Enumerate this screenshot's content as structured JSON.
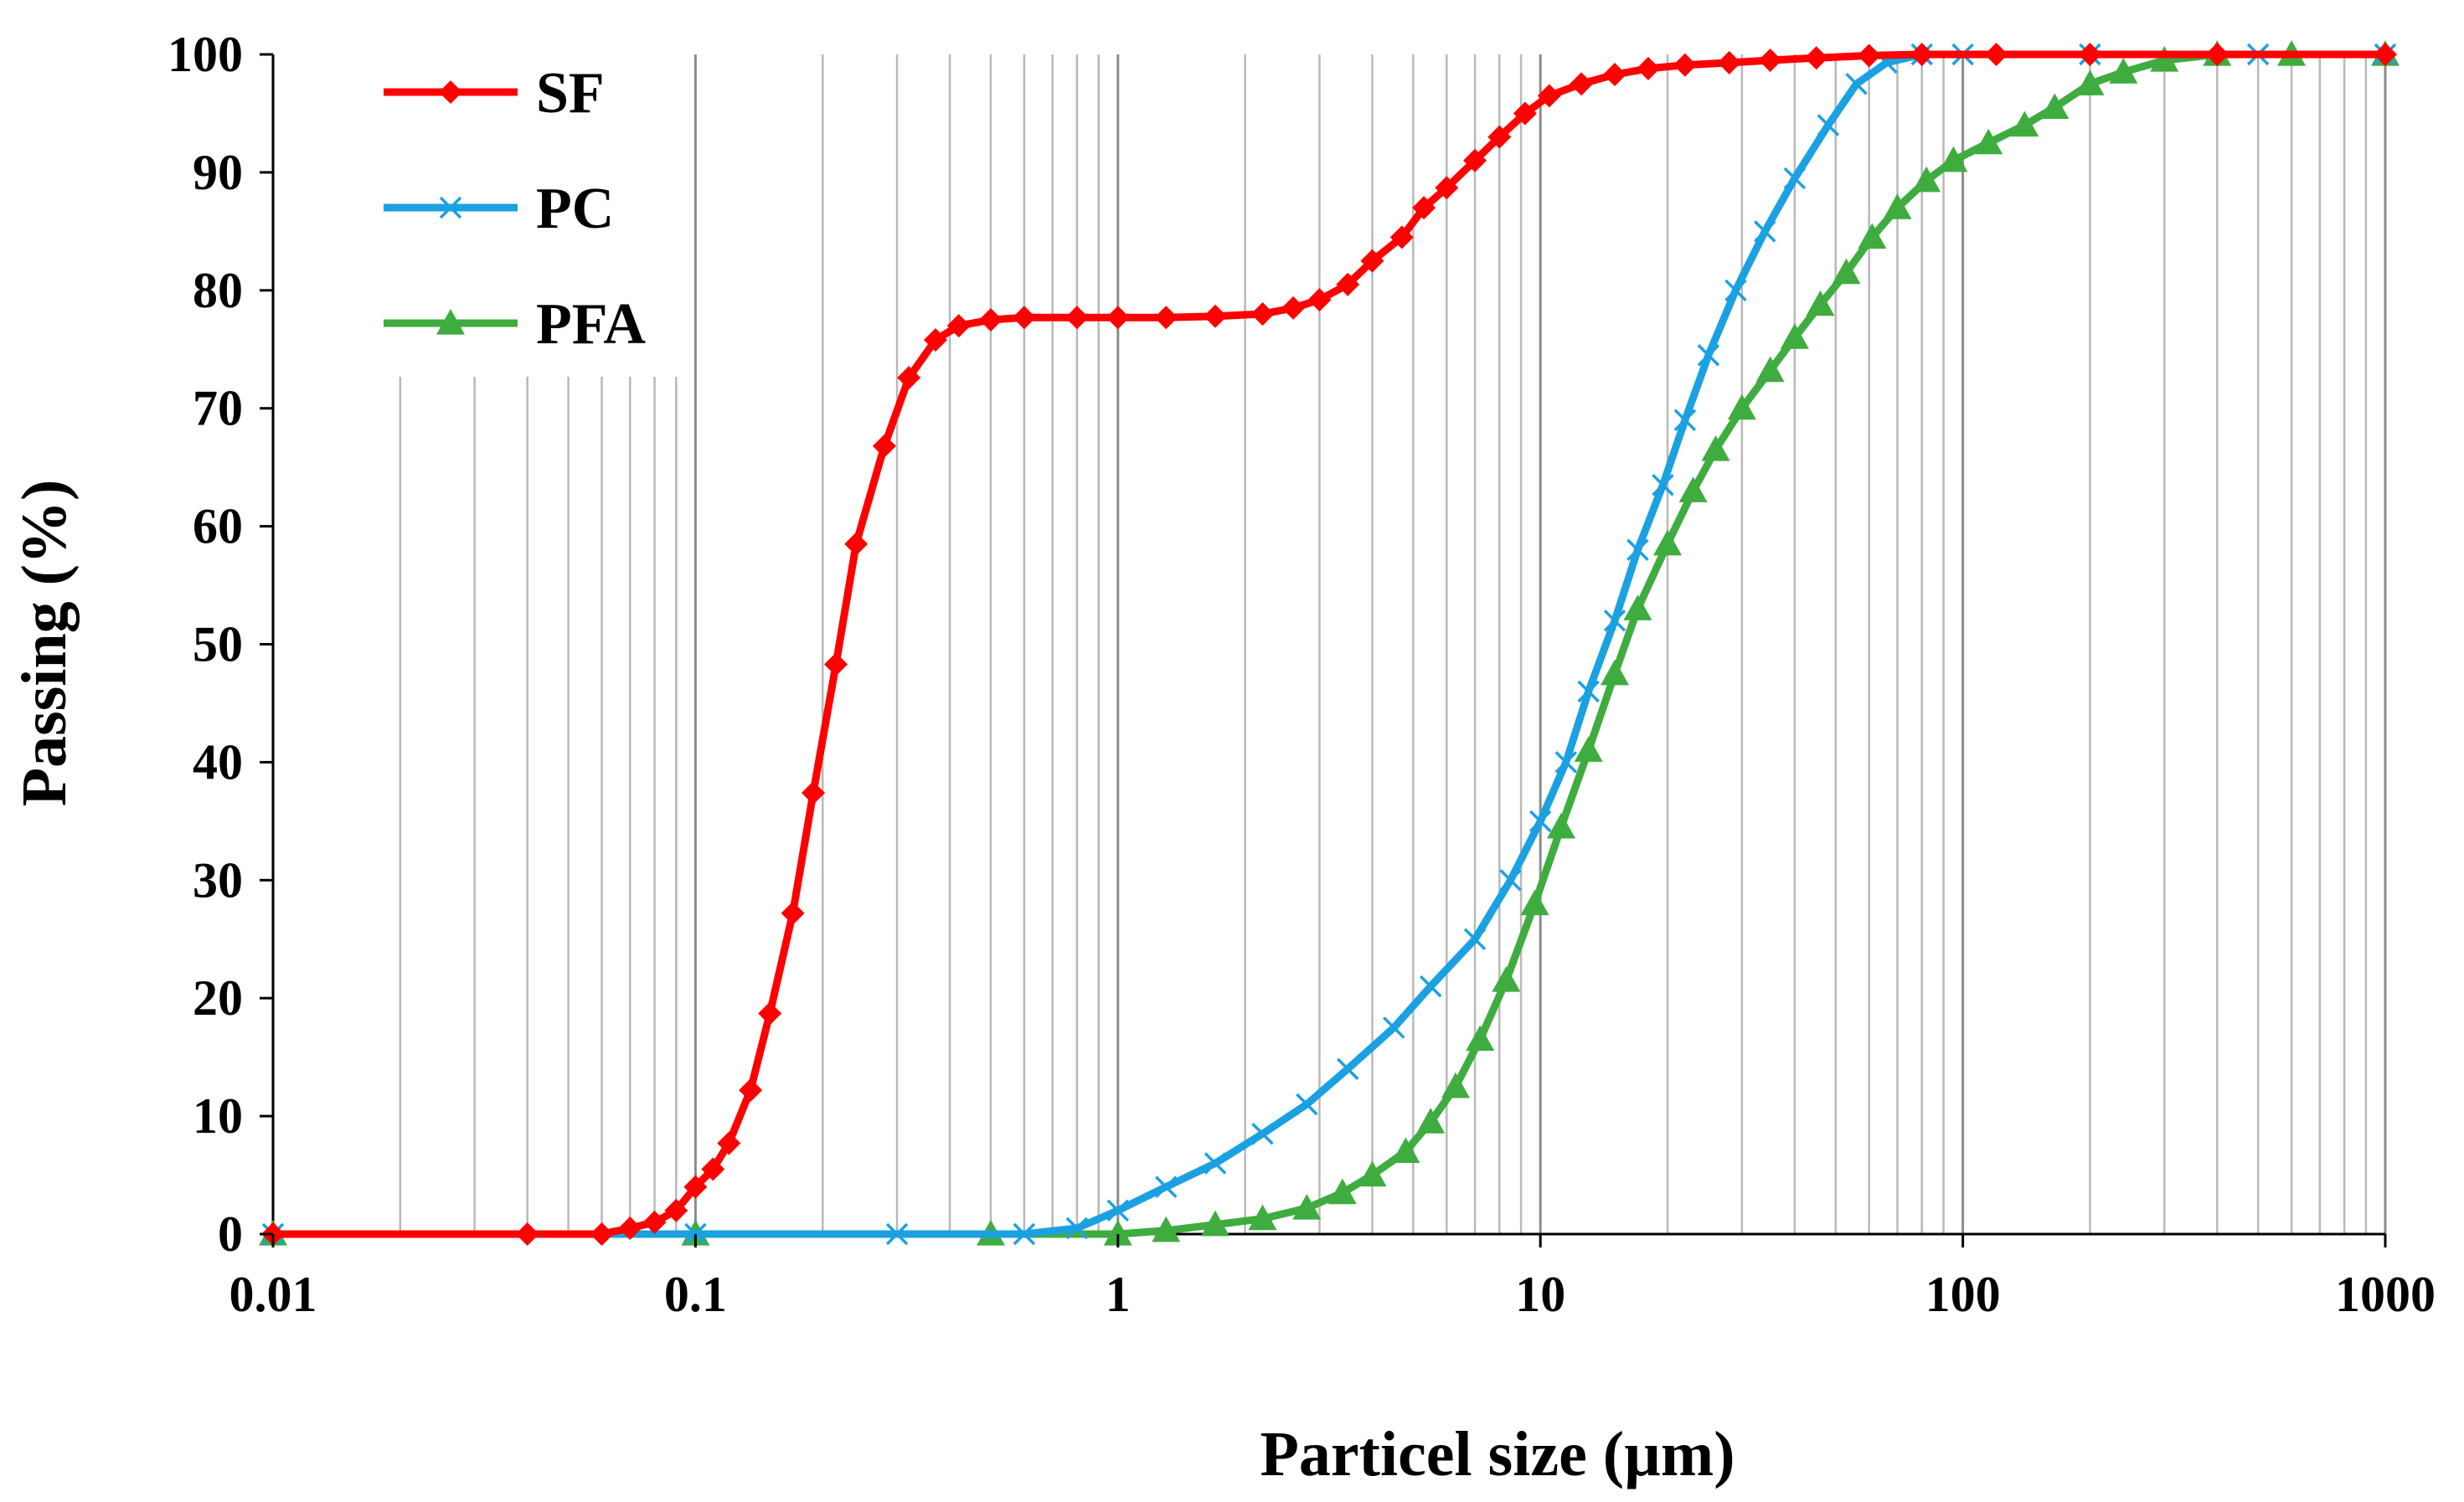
{
  "chart_data": {
    "type": "line",
    "title": "",
    "xlabel": "Particel size (µm)",
    "ylabel": "Passing (%)",
    "xscale": "log",
    "xlim": [
      0.01,
      1000
    ],
    "ylim": [
      0,
      100
    ],
    "xticks": [
      0.01,
      0.1,
      1,
      10,
      100,
      1000
    ],
    "xtick_labels": [
      "0.01",
      "0.1",
      "1",
      "10",
      "100",
      "1000"
    ],
    "yticks": [
      0,
      10,
      20,
      30,
      40,
      50,
      60,
      70,
      80,
      90,
      100
    ],
    "ytick_labels": [
      "0",
      "10",
      "20",
      "30",
      "40",
      "50",
      "60",
      "70",
      "80",
      "90",
      "100"
    ],
    "grid": "vertical log minor",
    "legend_position": "top-left",
    "series": [
      {
        "name": "SF",
        "color": "#ff0000",
        "marker": "diamond",
        "points": [
          [
            0.01,
            0
          ],
          [
            0.04,
            0
          ],
          [
            0.06,
            0
          ],
          [
            0.07,
            0.5
          ],
          [
            0.08,
            1
          ],
          [
            0.09,
            2
          ],
          [
            0.1,
            4
          ],
          [
            0.11,
            5.5
          ],
          [
            0.12,
            7.7
          ],
          [
            0.135,
            12.2
          ],
          [
            0.15,
            18.7
          ],
          [
            0.17,
            27.2
          ],
          [
            0.19,
            37.4
          ],
          [
            0.215,
            48.3
          ],
          [
            0.24,
            58.5
          ],
          [
            0.28,
            66.8
          ],
          [
            0.32,
            72.6
          ],
          [
            0.37,
            75.8
          ],
          [
            0.42,
            77
          ],
          [
            0.5,
            77.5
          ],
          [
            0.6,
            77.7
          ],
          [
            0.8,
            77.7
          ],
          [
            1.0,
            77.7
          ],
          [
            1.3,
            77.7
          ],
          [
            1.7,
            77.8
          ],
          [
            2.2,
            78
          ],
          [
            2.6,
            78.5
          ],
          [
            3.0,
            79.2
          ],
          [
            3.5,
            80.5
          ],
          [
            4.0,
            82.5
          ],
          [
            4.7,
            84.5
          ],
          [
            5.3,
            87
          ],
          [
            6.0,
            88.7
          ],
          [
            7.0,
            91
          ],
          [
            8.0,
            93
          ],
          [
            9.2,
            95
          ],
          [
            10.5,
            96.5
          ],
          [
            12.5,
            97.5
          ],
          [
            15,
            98.3
          ],
          [
            18,
            98.8
          ],
          [
            22,
            99.1
          ],
          [
            28,
            99.3
          ],
          [
            35,
            99.5
          ],
          [
            45,
            99.7
          ],
          [
            60,
            99.9
          ],
          [
            80,
            100
          ],
          [
            120,
            100
          ],
          [
            200,
            100
          ],
          [
            400,
            100
          ],
          [
            1000,
            100
          ]
        ]
      },
      {
        "name": "PC",
        "color": "#1ba1e2",
        "marker": "x",
        "points": [
          [
            0.01,
            0
          ],
          [
            0.1,
            0
          ],
          [
            0.3,
            0
          ],
          [
            0.6,
            0
          ],
          [
            0.8,
            0.5
          ],
          [
            1.0,
            2
          ],
          [
            1.3,
            4
          ],
          [
            1.7,
            6
          ],
          [
            2.2,
            8.5
          ],
          [
            2.8,
            11
          ],
          [
            3.5,
            14
          ],
          [
            4.5,
            17.5
          ],
          [
            5.5,
            21
          ],
          [
            7.0,
            25
          ],
          [
            8.5,
            30
          ],
          [
            10,
            35
          ],
          [
            11.5,
            40
          ],
          [
            13,
            46
          ],
          [
            15,
            52
          ],
          [
            17,
            58
          ],
          [
            19.5,
            63.5
          ],
          [
            22,
            69
          ],
          [
            25,
            74.5
          ],
          [
            29,
            80
          ],
          [
            34,
            85
          ],
          [
            40,
            89.5
          ],
          [
            48,
            94
          ],
          [
            56,
            97.5
          ],
          [
            66,
            99.3
          ],
          [
            80,
            100
          ],
          [
            100,
            100
          ],
          [
            200,
            100
          ],
          [
            500,
            100
          ],
          [
            1000,
            100
          ]
        ]
      },
      {
        "name": "PFA",
        "color": "#3fac3f",
        "marker": "triangle",
        "points": [
          [
            0.01,
            0
          ],
          [
            0.1,
            0
          ],
          [
            0.5,
            0
          ],
          [
            1.0,
            0
          ],
          [
            1.3,
            0.3
          ],
          [
            1.7,
            0.8
          ],
          [
            2.2,
            1.3
          ],
          [
            2.8,
            2.2
          ],
          [
            3.4,
            3.5
          ],
          [
            4.0,
            5
          ],
          [
            4.8,
            7
          ],
          [
            5.5,
            9.5
          ],
          [
            6.3,
            12.5
          ],
          [
            7.2,
            16.5
          ],
          [
            8.3,
            21.5
          ],
          [
            9.7,
            28
          ],
          [
            11.2,
            34.5
          ],
          [
            13,
            41
          ],
          [
            15,
            47.5
          ],
          [
            17,
            53
          ],
          [
            20,
            58.5
          ],
          [
            23,
            63
          ],
          [
            26,
            66.5
          ],
          [
            30,
            70
          ],
          [
            35,
            73.2
          ],
          [
            40,
            76
          ],
          [
            46,
            78.8
          ],
          [
            53,
            81.5
          ],
          [
            61,
            84.5
          ],
          [
            70,
            87
          ],
          [
            82,
            89.3
          ],
          [
            95,
            91
          ],
          [
            115,
            92.5
          ],
          [
            140,
            94
          ],
          [
            165,
            95.5
          ],
          [
            200,
            97.5
          ],
          [
            240,
            98.5
          ],
          [
            300,
            99.5
          ],
          [
            400,
            100
          ],
          [
            600,
            100
          ],
          [
            1000,
            100
          ]
        ]
      }
    ]
  }
}
